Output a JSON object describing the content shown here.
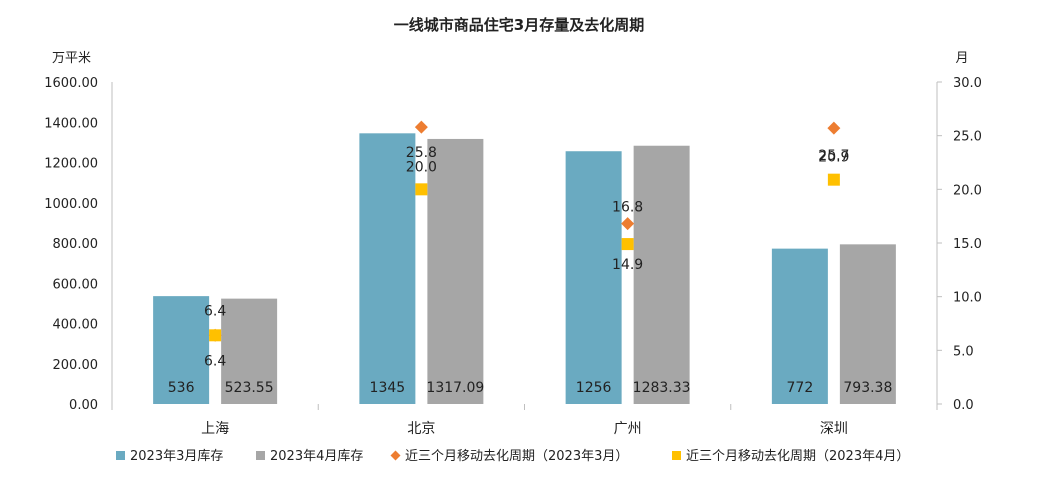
{
  "chart_data": {
    "type": "bar",
    "title": "一线城市商品住宅3月存量及去化周期",
    "y_left_unit": "万平米",
    "y_right_unit": "月",
    "categories": [
      "上海",
      "北京",
      "广州",
      "深圳"
    ],
    "ylim_left": [
      0,
      1600
    ],
    "ylim_right": [
      0,
      30
    ],
    "y_left_ticks": [
      "0.00",
      "200.00",
      "400.00",
      "600.00",
      "800.00",
      "1000.00",
      "1200.00",
      "1400.00",
      "1600.00"
    ],
    "y_right_ticks": [
      "0.0",
      "5.0",
      "10.0",
      "15.0",
      "20.0",
      "25.0",
      "30.0"
    ],
    "series": [
      {
        "name": "2023年3月库存",
        "kind": "bar",
        "axis": "left",
        "color": "#6aaac1",
        "values": [
          536,
          1345,
          1256,
          772
        ],
        "labels": [
          "536",
          "1345",
          "1256",
          "772"
        ]
      },
      {
        "name": "2023年4月库存",
        "kind": "bar",
        "axis": "left",
        "color": "#a6a6a6",
        "values": [
          523.55,
          1317.09,
          1283.33,
          793.38
        ],
        "labels": [
          "523.55",
          "1317.09",
          "1283.33",
          "793.38"
        ]
      },
      {
        "name": "近三个月移动去化周期（2023年3月）",
        "kind": "marker",
        "marker": "diamond",
        "axis": "right",
        "color": "#ed7d31",
        "values": [
          6.4,
          25.8,
          16.8,
          25.7
        ],
        "labels": [
          "6.4",
          "25.8",
          "16.8",
          "25.7"
        ]
      },
      {
        "name": "近三个月移动去化周期（2023年4月）",
        "kind": "marker",
        "marker": "square",
        "axis": "right",
        "color": "#ffc000",
        "values": [
          6.4,
          20.0,
          14.9,
          20.9
        ],
        "labels": [
          "6.4",
          "20.0",
          "14.9",
          "20.9"
        ]
      }
    ],
    "legend_position": "bottom",
    "grid": false
  }
}
